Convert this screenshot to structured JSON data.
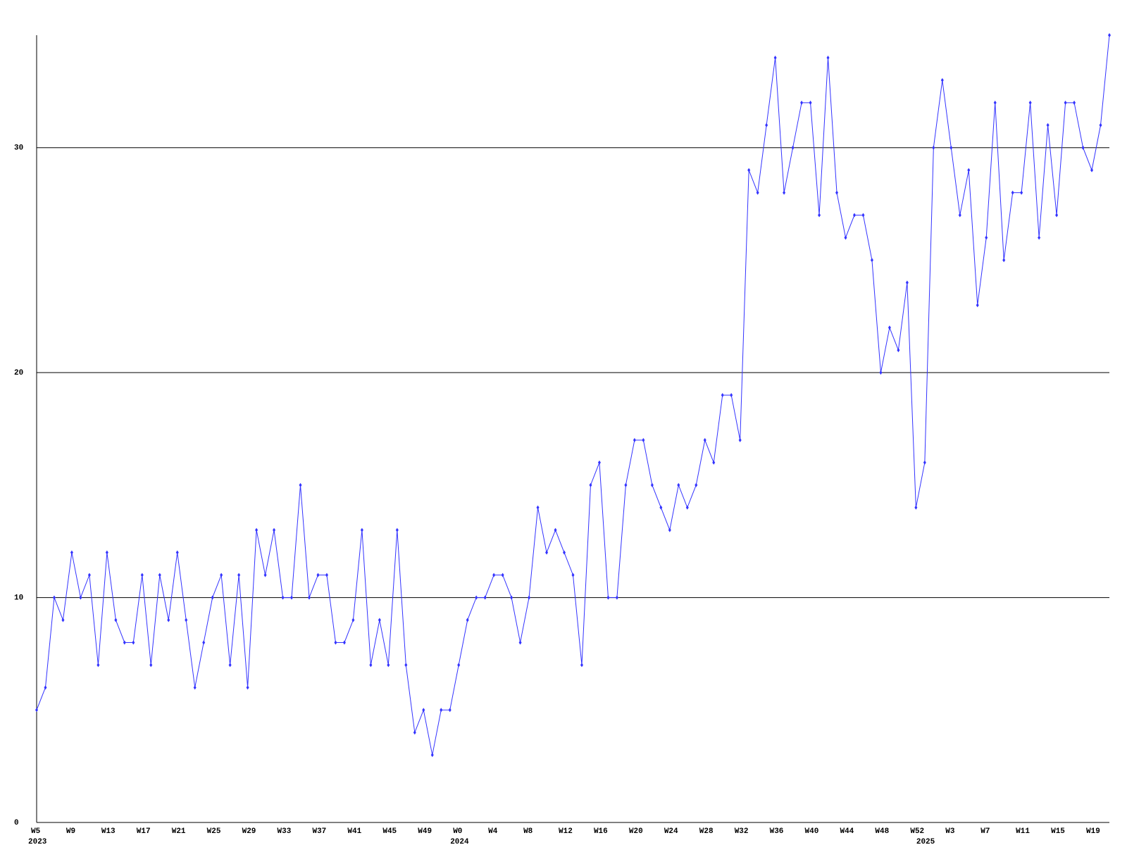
{
  "chart_data": {
    "type": "line",
    "categories": [
      "W5",
      null,
      null,
      null,
      "W9",
      null,
      null,
      null,
      "W13",
      null,
      null,
      null,
      "W17",
      null,
      null,
      null,
      "W21",
      null,
      null,
      null,
      "W25",
      null,
      null,
      null,
      "W29",
      null,
      null,
      null,
      "W33",
      null,
      null,
      null,
      "W37",
      null,
      null,
      null,
      "W41",
      null,
      null,
      null,
      "W45",
      null,
      null,
      null,
      "W49",
      null,
      null,
      null,
      "W0",
      null,
      null,
      null,
      "W4",
      null,
      null,
      null,
      "W8",
      null,
      null,
      null,
      "W12",
      null,
      null,
      null,
      "W16",
      null,
      null,
      null,
      "W20",
      null,
      null,
      null,
      "W24",
      null,
      null,
      null,
      "W28",
      null,
      null,
      null,
      "W32",
      null,
      null,
      null,
      "W36",
      null,
      null,
      null,
      "W40",
      null,
      null,
      null,
      "W44",
      null,
      null,
      null,
      "W48",
      null,
      null,
      null,
      "W52",
      null,
      null,
      null,
      "W3",
      null,
      null,
      null,
      "W7",
      null,
      null,
      null,
      "W11",
      null,
      null,
      null,
      "W15",
      null,
      null,
      null,
      "W19",
      null,
      null
    ],
    "year_labels": [
      {
        "label": "2023",
        "at": 0
      },
      {
        "label": "2024",
        "at": 48
      },
      {
        "label": "2025",
        "at": 101
      }
    ],
    "values": [
      5,
      6,
      10,
      9,
      12,
      10,
      11,
      7,
      12,
      9,
      8,
      8,
      11,
      7,
      11,
      9,
      12,
      9,
      6,
      8,
      10,
      11,
      7,
      11,
      6,
      13,
      11,
      13,
      10,
      10,
      15,
      10,
      11,
      11,
      8,
      8,
      9,
      13,
      7,
      9,
      7,
      13,
      7,
      4,
      5,
      3,
      5,
      5,
      7,
      9,
      10,
      10,
      11,
      11,
      10,
      8,
      10,
      14,
      12,
      13,
      12,
      11,
      7,
      15,
      16,
      10,
      10,
      15,
      17,
      17,
      15,
      14,
      13,
      15,
      14,
      15,
      17,
      16,
      19,
      19,
      17,
      29,
      28,
      31,
      34,
      28,
      30,
      32,
      32,
      27,
      34,
      28,
      26,
      27,
      27,
      25,
      20,
      22,
      21,
      24,
      14,
      16,
      30,
      33,
      30,
      27,
      29,
      23,
      26,
      32,
      25,
      28,
      28,
      32,
      26,
      31,
      27,
      32,
      32,
      30,
      29,
      31,
      35
    ],
    "color": "#3333ff",
    "ylim": [
      0,
      35
    ],
    "yticks": [
      0,
      10,
      20,
      30
    ],
    "grid": true
  }
}
